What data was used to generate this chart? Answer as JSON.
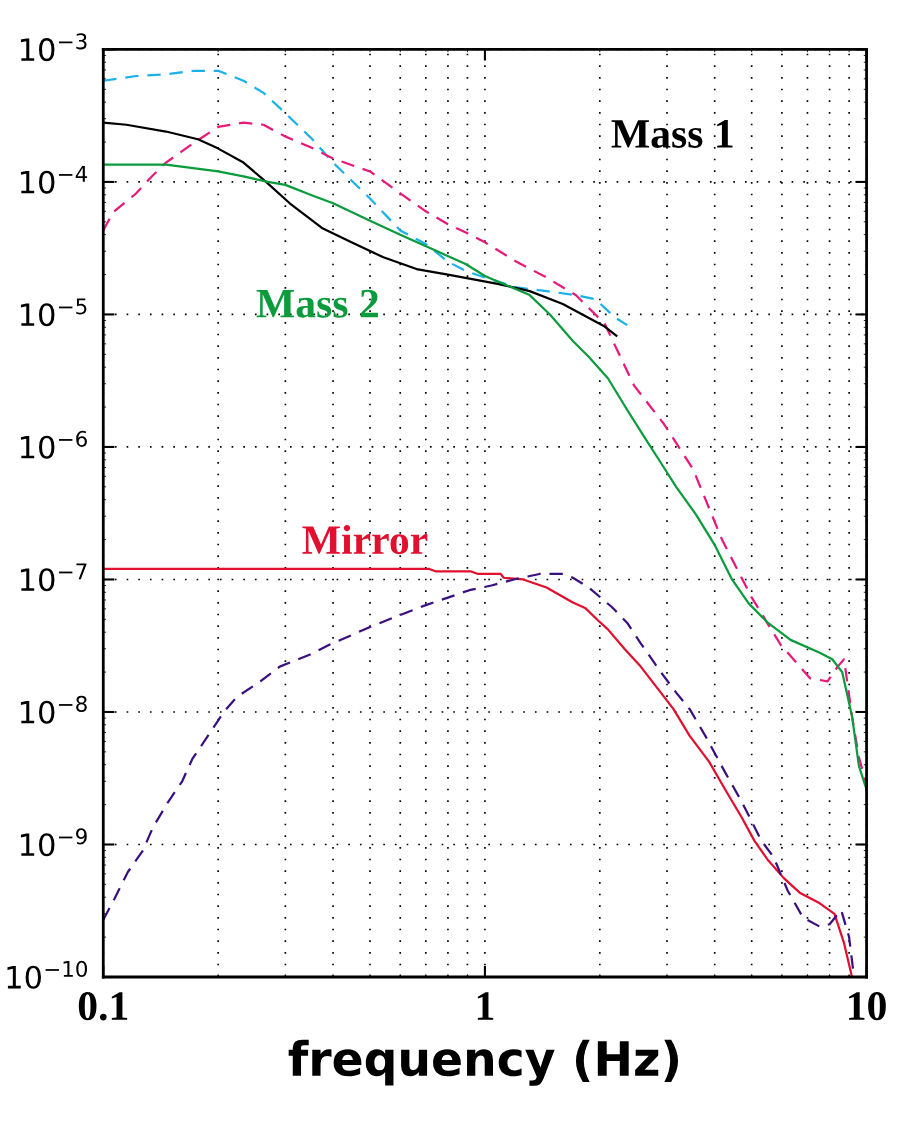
{
  "chart_data": {
    "type": "line",
    "xlabel": "frequency (Hz)",
    "log": "xy",
    "grid": true,
    "legend": false,
    "xlim": [
      0.1,
      10
    ],
    "ylim": [
      1e-10,
      0.001
    ],
    "xticks": [
      0.1,
      1,
      10
    ],
    "yticks": [
      {
        "value": 1e-10,
        "label": "10$^{−10}$"
      },
      {
        "value": 1e-09,
        "label": "10$^{−9}$"
      },
      {
        "value": 1e-08,
        "label": "10$^{−8}$"
      },
      {
        "value": 1e-07,
        "label": "10$^{−7}$"
      },
      {
        "value": 1e-06,
        "label": "10$^{−6}$"
      },
      {
        "value": 1e-05,
        "label": "10$^{−5}$"
      },
      {
        "value": 0.0001,
        "label": "10$^{−4}$"
      },
      {
        "value": 0.001,
        "label": "10$^{−3}$"
      }
    ],
    "series": [
      {
        "color": "#1ab0e8",
        "line_style": "dashed",
        "x": [
          0.1,
          0.122,
          0.146,
          0.174,
          0.2,
          0.233,
          0.263,
          0.3,
          0.353,
          0.4,
          0.5,
          0.6,
          0.7,
          0.8,
          0.9,
          1.0,
          1.21,
          1.45,
          1.73,
          1.95,
          2.19,
          2.36
        ],
        "values": [
          0.00058,
          0.00063,
          0.00065,
          0.00069,
          0.00069,
          0.00058,
          0.00047,
          0.00033,
          0.00021,
          0.00014,
          7.5e-05,
          4.3e-05,
          3.4e-05,
          2.5e-05,
          2.1e-05,
          1.9e-05,
          1.6e-05,
          1.5e-05,
          1.4e-05,
          1.3e-05,
          9.5e-06,
          8.3e-06
        ]
      },
      {
        "color": "#e6197a",
        "line_style": "dashed",
        "x": [
          0.1,
          0.106,
          0.122,
          0.134,
          0.146,
          0.174,
          0.2,
          0.233,
          0.263,
          0.3,
          0.353,
          0.4,
          0.5,
          0.6,
          0.7,
          0.8,
          0.9,
          1.0,
          1.21,
          1.45,
          1.73,
          2.06,
          2.46,
          2.94,
          3.51,
          4.18,
          4.99,
          5.96,
          7.11,
          7.9,
          8.4,
          8.73,
          9.16,
          9.54,
          10.0
        ],
        "values": [
          4.3e-05,
          5.9e-05,
          8.2e-05,
          0.00011,
          0.00014,
          0.0002,
          0.00026,
          0.00028,
          0.00027,
          0.00022,
          0.00018,
          0.00015,
          0.00012,
          8.2e-05,
          6e-05,
          4.8e-05,
          4.1e-05,
          3.5e-05,
          2.5e-05,
          1.9e-05,
          1.4e-05,
          8.5e-06,
          2.9e-06,
          1.5e-06,
          6.8e-07,
          2e-07,
          7.4e-08,
          3.2e-08,
          1.8e-08,
          1.7e-08,
          2.2e-08,
          2.5e-08,
          9.3e-09,
          4.6e-09,
          2.8e-09
        ]
      },
      {
        "name": "Mass 1",
        "color": "#000000",
        "line_style": "solid",
        "x": [
          0.1,
          0.115,
          0.146,
          0.177,
          0.199,
          0.233,
          0.267,
          0.308,
          0.374,
          0.447,
          0.542,
          0.662,
          0.8,
          1.08,
          1.31,
          1.6,
          1.8,
          2.06,
          2.21
        ],
        "values": [
          0.00028,
          0.00027,
          0.00024,
          0.00021,
          0.00018,
          0.00014,
          0.0001,
          6.9e-05,
          4.5e-05,
          3.5e-05,
          2.7e-05,
          2.2e-05,
          2e-05,
          1.7e-05,
          1.5e-05,
          1.2e-05,
          1e-05,
          8.1e-06,
          6.9e-06
        ]
      },
      {
        "name": "Mass 2",
        "color": "#0a9c3c",
        "line_style": "solid",
        "x": [
          0.1,
          0.146,
          0.2,
          0.233,
          0.27,
          0.3,
          0.353,
          0.4,
          0.5,
          0.6,
          0.73,
          0.89,
          1.0,
          1.12,
          1.31,
          1.48,
          1.7,
          1.87,
          2.1,
          2.36,
          2.61,
          2.89,
          3.17,
          3.57,
          4.01,
          4.44,
          4.91,
          5.52,
          6.32,
          7.54,
          8.13,
          8.63,
          9.16,
          9.55,
          10.0
        ],
        "values": [
          0.000135,
          0.000135,
          0.00012,
          0.00011,
          0.0001,
          9.5e-05,
          7.9e-05,
          6.9e-05,
          5.1e-05,
          4e-05,
          3.1e-05,
          2.4e-05,
          1.95e-05,
          1.7e-05,
          1.4e-05,
          1e-05,
          6.3e-06,
          4.8e-06,
          3.3e-06,
          1.9e-06,
          1.2e-06,
          7.6e-07,
          5e-07,
          3.1e-07,
          1.8e-07,
          1e-07,
          6.6e-08,
          4.7e-08,
          3.5e-08,
          2.8e-08,
          2.5e-08,
          2e-08,
          9.3e-09,
          3.9e-09,
          2.6e-09
        ]
      },
      {
        "name": "Mirror",
        "color": "#e0102e",
        "line_style": "solid",
        "x": [
          0.1,
          0.715,
          0.745,
          0.92,
          0.96,
          1.1,
          1.12,
          1.26,
          1.45,
          1.7,
          1.83,
          1.98,
          2.1,
          2.32,
          2.56,
          2.89,
          3.12,
          3.44,
          3.87,
          4.26,
          4.71,
          5.08,
          5.52,
          6.06,
          6.7,
          7.54,
          8.24,
          8.73,
          9.16
        ],
        "values": [
          1.2e-07,
          1.2e-07,
          1.15e-07,
          1.15e-07,
          1.1e-07,
          1.1e-07,
          1.03e-07,
          1e-07,
          8.7e-08,
          6.7e-08,
          6.1e-08,
          4.9e-08,
          4.2e-08,
          3e-08,
          2.2e-08,
          1.4e-08,
          1.05e-08,
          6.6e-09,
          4.2e-09,
          2.6e-09,
          1.6e-09,
          1.07e-09,
          7.6e-10,
          5.6e-10,
          4.3e-10,
          3.6e-10,
          3e-10,
          1.8e-10,
          1e-10
        ]
      },
      {
        "color": "#3a1080",
        "line_style": "dashed",
        "x": [
          0.1,
          0.107,
          0.116,
          0.127,
          0.135,
          0.148,
          0.161,
          0.171,
          0.188,
          0.207,
          0.224,
          0.258,
          0.29,
          0.347,
          0.39,
          0.447,
          0.502,
          0.6,
          0.7,
          0.8,
          0.91,
          1.04,
          1.19,
          1.39,
          1.6,
          1.7,
          1.87,
          2.15,
          2.36,
          2.56,
          2.89,
          3.17,
          3.44,
          3.78,
          4.26,
          4.71,
          5.3,
          5.71,
          6.21,
          6.82,
          7.54,
          8.0,
          8.58,
          9.0,
          9.27
        ],
        "values": [
          2.7e-10,
          3.9e-10,
          6.2e-10,
          9e-10,
          1.35e-09,
          2.1e-09,
          3e-09,
          4.4e-09,
          6.6e-09,
          1e-08,
          1.3e-08,
          1.7e-08,
          2.2e-08,
          2.7e-08,
          3.2e-08,
          3.8e-08,
          4.4e-08,
          5.4e-08,
          6.4e-08,
          7.3e-08,
          8.3e-08,
          9e-08,
          1e-07,
          1.1e-07,
          1.1e-07,
          1.03e-07,
          8.7e-08,
          6.2e-08,
          4.7e-08,
          3.3e-08,
          2e-08,
          1.4e-08,
          1.05e-08,
          6.6e-09,
          3.5e-09,
          2.1e-09,
          1.07e-09,
          8e-10,
          4.5e-10,
          2.8e-10,
          2.4e-10,
          2.5e-10,
          3.2e-10,
          2e-10,
          1e-10
        ]
      }
    ]
  }
}
